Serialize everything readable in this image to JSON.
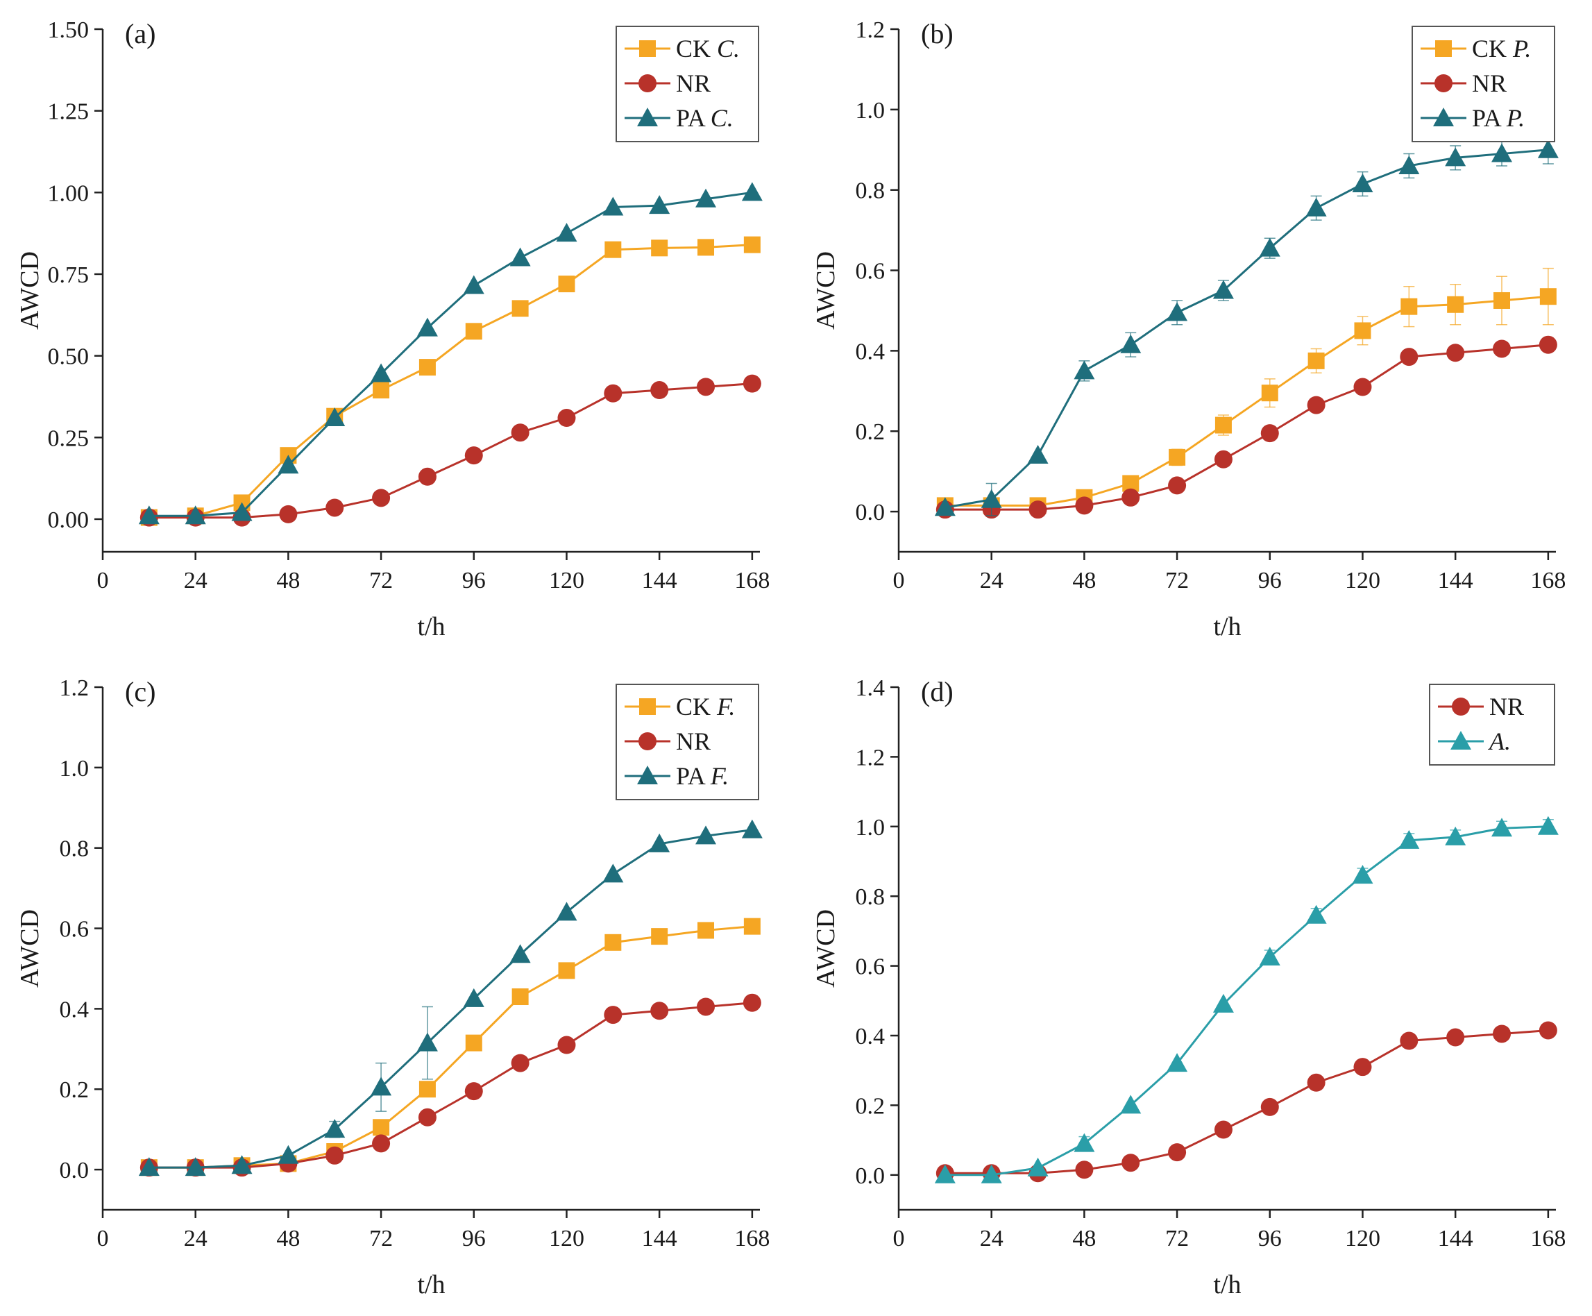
{
  "colors": {
    "ck": "#f5a623",
    "nr": "#b8322a",
    "pa": "#1f6e7c",
    "pa_light": "#2a9ea8"
  },
  "chart_data": [
    {
      "type": "line",
      "panel_label": "(a)",
      "xlabel": "t/h",
      "ylabel": "AWCD",
      "xlim": [
        0,
        170
      ],
      "ylim": [
        -0.1,
        1.5
      ],
      "xticks": [
        0,
        24,
        48,
        72,
        96,
        120,
        144,
        168
      ],
      "yticks": [
        0.0,
        0.25,
        0.5,
        0.75,
        1.0,
        1.25,
        1.5
      ],
      "ytick_labels": [
        "0.00",
        "0.25",
        "0.50",
        "0.75",
        "1.00",
        "1.25",
        "1.50"
      ],
      "x": [
        12,
        24,
        36,
        48,
        60,
        72,
        84,
        96,
        108,
        120,
        132,
        144,
        156,
        168
      ],
      "legend_position": "top-right",
      "series": [
        {
          "name": "CK",
          "name_italic": "C.",
          "marker": "square",
          "color_key": "ck",
          "values": [
            0.005,
            0.01,
            0.05,
            0.195,
            0.315,
            0.395,
            0.465,
            0.575,
            0.645,
            0.72,
            0.825,
            0.83,
            0.832,
            0.84
          ],
          "errors": [
            0,
            0,
            0,
            0,
            0,
            0,
            0,
            0,
            0,
            0,
            0,
            0,
            0,
            0
          ]
        },
        {
          "name": "NR",
          "name_italic": "",
          "marker": "circle",
          "color_key": "nr",
          "values": [
            0.005,
            0.005,
            0.005,
            0.015,
            0.035,
            0.065,
            0.13,
            0.195,
            0.265,
            0.31,
            0.385,
            0.395,
            0.405,
            0.415
          ],
          "errors": [
            0,
            0,
            0,
            0,
            0,
            0,
            0,
            0,
            0,
            0,
            0,
            0,
            0,
            0
          ]
        },
        {
          "name": "PA",
          "name_italic": "C.",
          "marker": "triangle",
          "color_key": "pa",
          "values": [
            0.01,
            0.01,
            0.02,
            0.165,
            0.31,
            0.445,
            0.585,
            0.715,
            0.8,
            0.875,
            0.955,
            0.96,
            0.98,
            1.0
          ],
          "errors": [
            0,
            0,
            0,
            0,
            0,
            0,
            0,
            0,
            0,
            0,
            0,
            0,
            0,
            0
          ]
        }
      ]
    },
    {
      "type": "line",
      "panel_label": "(b)",
      "xlabel": "t/h",
      "ylabel": "AWCD",
      "xlim": [
        0,
        170
      ],
      "ylim": [
        -0.1,
        1.2
      ],
      "xticks": [
        0,
        24,
        48,
        72,
        96,
        120,
        144,
        168
      ],
      "yticks": [
        0.0,
        0.2,
        0.4,
        0.6,
        0.8,
        1.0,
        1.2
      ],
      "ytick_labels": [
        "0.0",
        "0.2",
        "0.4",
        "0.6",
        "0.8",
        "1.0",
        "1.2"
      ],
      "x": [
        12,
        24,
        36,
        48,
        60,
        72,
        84,
        96,
        108,
        120,
        132,
        144,
        156,
        168
      ],
      "legend_position": "top-right",
      "series": [
        {
          "name": "CK",
          "name_italic": "P.",
          "marker": "square",
          "color_key": "ck",
          "values": [
            0.015,
            0.015,
            0.015,
            0.035,
            0.07,
            0.135,
            0.215,
            0.295,
            0.375,
            0.45,
            0.51,
            0.515,
            0.525,
            0.535
          ],
          "errors": [
            0,
            0,
            0,
            0.01,
            0.015,
            0.02,
            0.025,
            0.035,
            0.03,
            0.035,
            0.05,
            0.05,
            0.06,
            0.07
          ]
        },
        {
          "name": "NR",
          "name_italic": "",
          "marker": "circle",
          "color_key": "nr",
          "values": [
            0.005,
            0.005,
            0.005,
            0.015,
            0.035,
            0.065,
            0.13,
            0.195,
            0.265,
            0.31,
            0.385,
            0.395,
            0.405,
            0.415
          ],
          "errors": [
            0,
            0,
            0,
            0,
            0,
            0,
            0,
            0,
            0,
            0,
            0,
            0,
            0,
            0
          ]
        },
        {
          "name": "PA",
          "name_italic": "P.",
          "marker": "triangle",
          "color_key": "pa",
          "values": [
            0.01,
            0.03,
            0.14,
            0.35,
            0.415,
            0.495,
            0.55,
            0.655,
            0.755,
            0.815,
            0.86,
            0.88,
            0.89,
            0.9
          ],
          "errors": [
            0,
            0.04,
            0,
            0.025,
            0.03,
            0.03,
            0.025,
            0.025,
            0.03,
            0.03,
            0.03,
            0.03,
            0.03,
            0.035
          ]
        }
      ]
    },
    {
      "type": "line",
      "panel_label": "(c)",
      "xlabel": "t/h",
      "ylabel": "AWCD",
      "xlim": [
        0,
        170
      ],
      "ylim": [
        -0.1,
        1.2
      ],
      "xticks": [
        0,
        24,
        48,
        72,
        96,
        120,
        144,
        168
      ],
      "yticks": [
        0.0,
        0.2,
        0.4,
        0.6,
        0.8,
        1.0,
        1.2
      ],
      "ytick_labels": [
        "0.0",
        "0.2",
        "0.4",
        "0.6",
        "0.8",
        "1.0",
        "1.2"
      ],
      "x": [
        12,
        24,
        36,
        48,
        60,
        72,
        84,
        96,
        108,
        120,
        132,
        144,
        156,
        168
      ],
      "legend_position": "top-right",
      "series": [
        {
          "name": "CK",
          "name_italic": "F.",
          "marker": "square",
          "color_key": "ck",
          "values": [
            0.005,
            0.005,
            0.01,
            0.015,
            0.045,
            0.105,
            0.2,
            0.315,
            0.43,
            0.495,
            0.565,
            0.58,
            0.595,
            0.605
          ],
          "errors": [
            0,
            0,
            0,
            0,
            0,
            0,
            0,
            0,
            0,
            0,
            0,
            0,
            0,
            0
          ]
        },
        {
          "name": "NR",
          "name_italic": "",
          "marker": "circle",
          "color_key": "nr",
          "values": [
            0.005,
            0.005,
            0.005,
            0.015,
            0.035,
            0.065,
            0.13,
            0.195,
            0.265,
            0.31,
            0.385,
            0.395,
            0.405,
            0.415
          ],
          "errors": [
            0,
            0,
            0,
            0,
            0,
            0,
            0,
            0,
            0,
            0,
            0,
            0,
            0,
            0
          ]
        },
        {
          "name": "PA",
          "name_italic": "F.",
          "marker": "triangle",
          "color_key": "pa",
          "values": [
            0.005,
            0.005,
            0.01,
            0.035,
            0.1,
            0.205,
            0.315,
            0.425,
            0.535,
            0.64,
            0.735,
            0.81,
            0.83,
            0.845
          ],
          "errors": [
            0,
            0,
            0,
            0,
            0.02,
            0.06,
            0.09,
            0,
            0,
            0,
            0,
            0,
            0,
            0
          ]
        }
      ]
    },
    {
      "type": "line",
      "panel_label": "(d)",
      "xlabel": "t/h",
      "ylabel": "AWCD",
      "xlim": [
        0,
        170
      ],
      "ylim": [
        -0.1,
        1.4
      ],
      "xticks": [
        0,
        24,
        48,
        72,
        96,
        120,
        144,
        168
      ],
      "yticks": [
        0.0,
        0.2,
        0.4,
        0.6,
        0.8,
        1.0,
        1.2,
        1.4
      ],
      "ytick_labels": [
        "0.0",
        "0.2",
        "0.4",
        "0.6",
        "0.8",
        "1.0",
        "1.2",
        "1.4"
      ],
      "x": [
        12,
        24,
        36,
        48,
        60,
        72,
        84,
        96,
        108,
        120,
        132,
        144,
        156,
        168
      ],
      "legend_position": "top-right",
      "series": [
        {
          "name": "NR",
          "name_italic": "",
          "marker": "circle",
          "color_key": "nr",
          "values": [
            0.005,
            0.005,
            0.005,
            0.015,
            0.035,
            0.065,
            0.13,
            0.195,
            0.265,
            0.31,
            0.385,
            0.395,
            0.405,
            0.415
          ],
          "errors": [
            0,
            0,
            0,
            0,
            0,
            0,
            0,
            0,
            0,
            0,
            0,
            0,
            0,
            0
          ]
        },
        {
          "name": "",
          "name_italic": "A.",
          "marker": "triangle",
          "color_key": "pa_light",
          "values": [
            0.0,
            0.0,
            0.02,
            0.09,
            0.2,
            0.32,
            0.49,
            0.625,
            0.745,
            0.86,
            0.96,
            0.97,
            0.995,
            1.0
          ],
          "errors": [
            0,
            0,
            0,
            0.02,
            0,
            0,
            0,
            0.02,
            0.02,
            0.02,
            0.02,
            0.02,
            0.02,
            0.02
          ]
        }
      ]
    }
  ]
}
